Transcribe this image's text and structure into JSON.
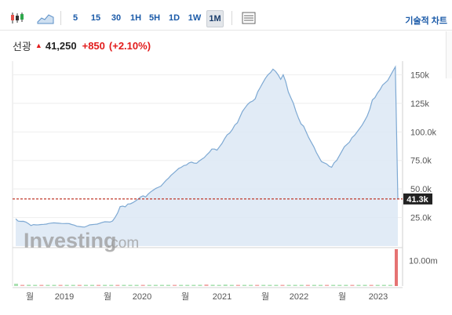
{
  "toolbar": {
    "icons": {
      "candles": "candlestick-icon",
      "area": "area-chart-icon",
      "table": "table-icon"
    },
    "intervals": [
      "5",
      "15",
      "30",
      "1H",
      "5H",
      "1D",
      "1W",
      "1M"
    ],
    "active_interval": "1M",
    "technical_link": "기술적 차트"
  },
  "quote": {
    "name": "선광",
    "direction": "up",
    "price": "41,250",
    "change": "+850",
    "change_pct": "(+2.10%)"
  },
  "watermark": {
    "text": "Investing",
    "suffix": ".com"
  },
  "colors": {
    "up": "#e21b1b",
    "line": "#7ea9d3",
    "area": "#dce8f4",
    "price_line": "#c0392b",
    "vol_up": "#a8e0b0",
    "vol_down": "#f2a7a7",
    "vol_last": "#e57373"
  },
  "chart_data": {
    "type": "area",
    "x_tick_labels": [
      "월",
      "2019",
      "월",
      "2020",
      "월",
      "2021",
      "월",
      "2022",
      "월",
      "2023"
    ],
    "y_tick_labels": [
      "150k",
      "125k",
      "100.0k",
      "75.0k",
      "50.0k",
      "25.0k"
    ],
    "y_ticks": [
      150000,
      125000,
      100000,
      75000,
      50000,
      25000
    ],
    "ylim": [
      0,
      162000
    ],
    "current_label": "41.3k",
    "current_value": 41250,
    "volume_label": "10.00m",
    "volume_label_value": 10000000,
    "volume_max": 14500000,
    "series": [
      {
        "values": [
          23800,
          21800,
          21600,
          21700,
          21000,
          19600,
          18000,
          18800,
          18500,
          18600,
          18900,
          19000,
          19200,
          19800,
          20100,
          20300,
          20200,
          20000,
          19800,
          19700,
          19800,
          19600,
          18900,
          18300,
          17400,
          17100,
          16800,
          16600,
          17500,
          18500,
          18800,
          19000,
          19200,
          20000,
          20700,
          21300,
          21200,
          21000,
          22000,
          25000,
          29000,
          34500,
          35000,
          34400,
          36800,
          37000,
          38000,
          39500,
          41000,
          43000,
          44000,
          43000,
          45500,
          47500,
          49000,
          50500,
          51500,
          52500,
          55000,
          57500,
          59500,
          62000,
          64000,
          66000,
          68000,
          69000,
          70500,
          71000,
          72800,
          73500,
          72700,
          72500,
          74500,
          76000,
          77500,
          80000,
          82000,
          85000,
          85000,
          84000,
          87000,
          90000,
          94000,
          97500,
          99000,
          102000,
          106000,
          108000,
          113000,
          118000,
          121000,
          124000,
          126000,
          127000,
          129000,
          135000,
          139000,
          143000,
          147000,
          150000,
          152000,
          155000,
          153000,
          150000,
          146000,
          150000,
          144000,
          135000,
          130000,
          125000,
          118000,
          112000,
          107000,
          105000,
          100000,
          95000,
          91000,
          87000,
          82000,
          78000,
          74000,
          73000,
          72000,
          70000,
          69000,
          73000,
          75000,
          79000,
          83000,
          87000,
          89000,
          91000,
          95000,
          97000,
          100000,
          103000,
          106000,
          110000,
          114000,
          120000,
          128000,
          130000,
          134000,
          137000,
          141000,
          143000,
          145000,
          149000,
          153000,
          157000,
          41250
        ]
      }
    ],
    "volumes": [
      900000,
      300000,
      500000,
      200000,
      400000,
      300000,
      200000,
      300000,
      200000,
      250000,
      180000,
      200000,
      150000,
      200000,
      220000,
      180000,
      160000,
      180000,
      200000,
      170000,
      250000,
      180000,
      200000,
      220000,
      240000,
      260000,
      280000,
      300000,
      400000,
      500000,
      600000,
      500000,
      450000,
      550000,
      300000,
      250000,
      280000,
      320000,
      400000,
      250000,
      260000,
      220000,
      300000,
      280000,
      250000,
      240000,
      230000,
      250000,
      260000,
      280000,
      300000,
      250000,
      350000,
      300000,
      280000,
      260000,
      420000,
      200000,
      180000,
      380000,
      14500000
    ],
    "volume_up": [
      true,
      false,
      true,
      true,
      false,
      true,
      true,
      false,
      true,
      true,
      false,
      true,
      true,
      false,
      true,
      true,
      false,
      true,
      true,
      true,
      false,
      true,
      true,
      true,
      true,
      false,
      true,
      true,
      true,
      true,
      false,
      true,
      true,
      true,
      true,
      false,
      true,
      true,
      false,
      true,
      true,
      true,
      false,
      true,
      true,
      true,
      false,
      true,
      true,
      false,
      true,
      true,
      true,
      false,
      true,
      true,
      false,
      true,
      true,
      true,
      false
    ]
  }
}
